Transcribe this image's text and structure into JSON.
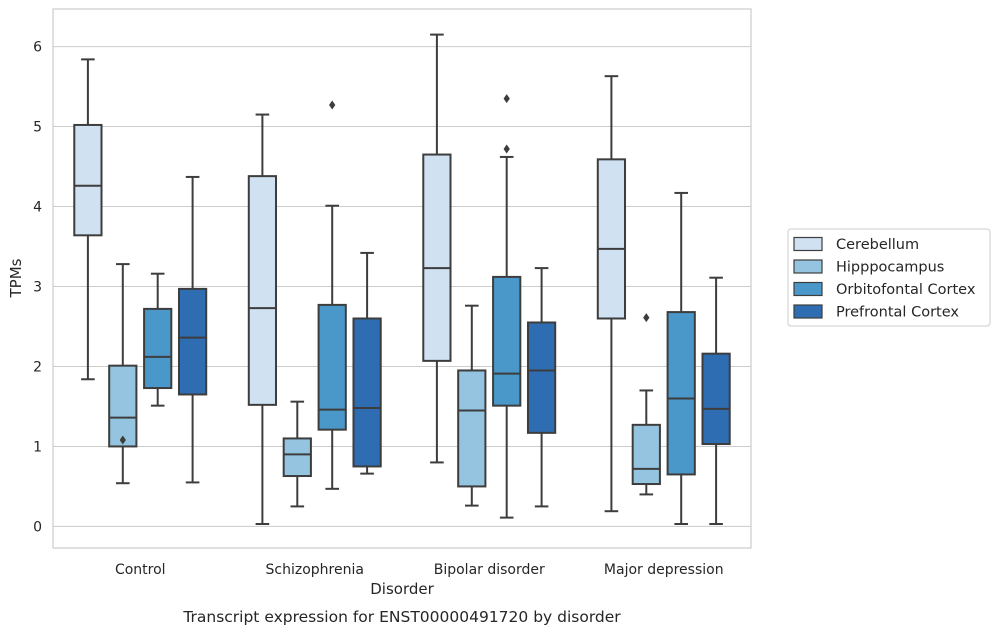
{
  "chart_data": {
    "type": "box",
    "xlabel": "Disorder",
    "ylabel": "TPMs",
    "caption": "Transcript expression for ENST00000491720 by disorder",
    "categories": [
      "Control",
      "Schizophrenia",
      "Bipolar disorder",
      "Major depression"
    ],
    "ylim": [
      -0.27,
      6.47
    ],
    "yticks": [
      "0",
      "1",
      "2",
      "3",
      "4",
      "5",
      "6"
    ],
    "grid": "horizontal",
    "legend": {
      "placement": "right",
      "entries": [
        "Cerebellum",
        "Hipppocampus",
        "Orbitofontal Cortex",
        "Prefrontal Cortex"
      ]
    },
    "colors": [
      "#d0e1f2",
      "#94c4df",
      "#4a98c9",
      "#2e6db1"
    ],
    "series": [
      {
        "name": "Cerebellum",
        "boxes": [
          {
            "min": 1.84,
            "q1": 3.64,
            "median": 4.26,
            "q3": 5.02,
            "max": 5.84,
            "outliers": []
          },
          {
            "min": 0.03,
            "q1": 1.52,
            "median": 2.73,
            "q3": 4.38,
            "max": 5.15,
            "outliers": []
          },
          {
            "min": 0.8,
            "q1": 2.07,
            "median": 3.23,
            "q3": 4.65,
            "max": 6.15,
            "outliers": []
          },
          {
            "min": 0.19,
            "q1": 2.6,
            "median": 3.47,
            "q3": 4.59,
            "max": 5.63,
            "outliers": []
          }
        ]
      },
      {
        "name": "Hipppocampus",
        "boxes": [
          {
            "min": 0.54,
            "q1": 1.0,
            "median": 1.36,
            "q3": 2.01,
            "max": 3.28,
            "outliers": [
              1.08
            ]
          },
          {
            "min": 0.25,
            "q1": 0.63,
            "median": 0.9,
            "q3": 1.1,
            "max": 1.56,
            "outliers": []
          },
          {
            "min": 0.26,
            "q1": 0.5,
            "median": 1.45,
            "q3": 1.95,
            "max": 2.76,
            "outliers": []
          },
          {
            "min": 0.4,
            "q1": 0.53,
            "median": 0.72,
            "q3": 1.27,
            "max": 1.7,
            "outliers": [
              2.61
            ]
          }
        ]
      },
      {
        "name": "Orbitofontal Cortex",
        "boxes": [
          {
            "min": 1.51,
            "q1": 1.73,
            "median": 2.12,
            "q3": 2.72,
            "max": 3.16,
            "outliers": []
          },
          {
            "min": 0.47,
            "q1": 1.21,
            "median": 1.46,
            "q3": 2.77,
            "max": 4.01,
            "outliers": [
              5.27
            ]
          },
          {
            "min": 0.11,
            "q1": 1.51,
            "median": 1.91,
            "q3": 3.12,
            "max": 4.62,
            "outliers": [
              4.72,
              5.35
            ]
          },
          {
            "min": 0.03,
            "q1": 0.65,
            "median": 1.6,
            "q3": 2.68,
            "max": 4.17,
            "outliers": []
          }
        ]
      },
      {
        "name": "Prefrontal Cortex",
        "boxes": [
          {
            "min": 0.55,
            "q1": 1.65,
            "median": 2.36,
            "q3": 2.97,
            "max": 4.37,
            "outliers": []
          },
          {
            "min": 0.66,
            "q1": 0.75,
            "median": 1.48,
            "q3": 2.6,
            "max": 3.42,
            "outliers": []
          },
          {
            "min": 0.25,
            "q1": 1.17,
            "median": 1.95,
            "q3": 2.55,
            "max": 3.23,
            "outliers": []
          },
          {
            "min": 0.03,
            "q1": 1.03,
            "median": 1.47,
            "q3": 2.16,
            "max": 3.11,
            "outliers": []
          }
        ]
      }
    ]
  }
}
